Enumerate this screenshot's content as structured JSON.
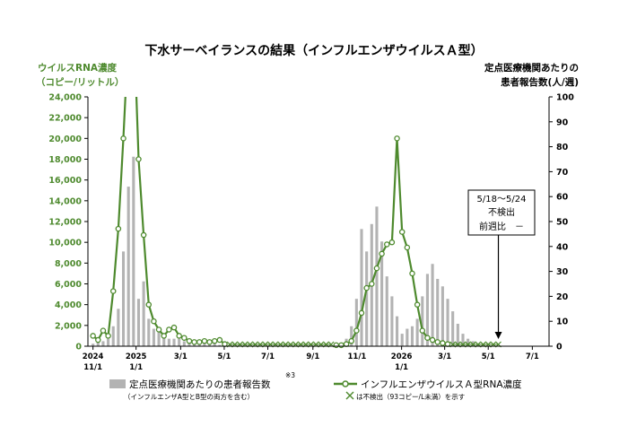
{
  "chart_data": {
    "type": "bar+line",
    "title": "下水サーベイランスの結果（インフルエンザウイルスＡ型）",
    "left_axis": {
      "label_line1": "ウイルスRNA濃度",
      "label_line2": "（コピー/リットル）",
      "ylim": [
        0,
        24000
      ],
      "ticks": [
        "0",
        "2,000",
        "4,000",
        "6,000",
        "8,000",
        "10,000",
        "12,000",
        "14,000",
        "16,000",
        "18,000",
        "20,000",
        "22,000",
        "24,000"
      ]
    },
    "right_axis": {
      "label_line1": "定点医療機関あたりの",
      "label_line2": "患者報告数(人/週)",
      "ylim": [
        0,
        100
      ],
      "ticks": [
        "0",
        "10",
        "20",
        "30",
        "40",
        "50",
        "60",
        "70",
        "80",
        "90",
        "100"
      ]
    },
    "x_ticks": [
      {
        "week": 0,
        "line1": "2024",
        "line2": "11/1"
      },
      {
        "week": 8.5,
        "line1": "2025",
        "line2": "1/1"
      },
      {
        "week": 17.3,
        "line1": "3/1",
        "line2": ""
      },
      {
        "week": 25.9,
        "line1": "5/1",
        "line2": ""
      },
      {
        "week": 34.5,
        "line1": "7/1",
        "line2": ""
      },
      {
        "week": 43.4,
        "line1": "9/1",
        "line2": ""
      },
      {
        "week": 52.1,
        "line1": "11/1",
        "line2": ""
      },
      {
        "week": 60.9,
        "line1": "2026",
        "line2": "1/1"
      },
      {
        "week": 69.4,
        "line1": "3/1",
        "line2": ""
      },
      {
        "week": 78.0,
        "line1": "5/1",
        "line2": ""
      },
      {
        "week": 86.7,
        "line1": "7/1",
        "line2": ""
      }
    ],
    "x_range_weeks": [
      -1,
      90
    ],
    "bars": {
      "name": "定点医療機関あたりの患者報告数",
      "note": "※3",
      "sub": "（インフルエンザA型とB型の両方を含む）",
      "color": "#b3b3b3",
      "points": [
        [
          0,
          1
        ],
        [
          1,
          1.5
        ],
        [
          2,
          2
        ],
        [
          3,
          3
        ],
        [
          4,
          8
        ],
        [
          5,
          15
        ],
        [
          6,
          38
        ],
        [
          7,
          64
        ],
        [
          8,
          76
        ],
        [
          9,
          19
        ],
        [
          10,
          26
        ],
        [
          11,
          11
        ],
        [
          12,
          7
        ],
        [
          13,
          6
        ],
        [
          14,
          4
        ],
        [
          15,
          3
        ],
        [
          16,
          3
        ],
        [
          17,
          3
        ],
        [
          18,
          2
        ],
        [
          19,
          2
        ],
        [
          20,
          1.5
        ],
        [
          21,
          1
        ],
        [
          22,
          1
        ],
        [
          23,
          1
        ],
        [
          24,
          1
        ],
        [
          25,
          0.5
        ],
        [
          48,
          0.5
        ],
        [
          49,
          1
        ],
        [
          50,
          3
        ],
        [
          51,
          8
        ],
        [
          52,
          19
        ],
        [
          53,
          47
        ],
        [
          54,
          38
        ],
        [
          55,
          49
        ],
        [
          56,
          56
        ],
        [
          57,
          42
        ],
        [
          58,
          28
        ],
        [
          59,
          20
        ],
        [
          60,
          12
        ],
        [
          61,
          5
        ],
        [
          62,
          7
        ],
        [
          63,
          8
        ],
        [
          64,
          11
        ],
        [
          65,
          20
        ],
        [
          66,
          29
        ],
        [
          67,
          33
        ],
        [
          68,
          27
        ],
        [
          69,
          24
        ],
        [
          70,
          19
        ],
        [
          71,
          14
        ],
        [
          72,
          9
        ],
        [
          73,
          5
        ],
        [
          74,
          3
        ],
        [
          75,
          2
        ],
        [
          76,
          1
        ],
        [
          77,
          1
        ]
      ]
    },
    "line": {
      "name": "インフルエンザウイルスＡ型RNA濃度",
      "color": "#4e8a2e",
      "points": [
        [
          0,
          1000
        ],
        [
          1,
          600
        ],
        [
          2,
          1500
        ],
        [
          3,
          1000
        ],
        [
          4,
          5300
        ],
        [
          5,
          11300
        ],
        [
          6,
          20000
        ],
        [
          7,
          30000
        ],
        [
          8,
          32000
        ],
        [
          9,
          18000
        ],
        [
          10,
          10700
        ],
        [
          11,
          4000
        ],
        [
          12,
          2400
        ],
        [
          13,
          1600
        ],
        [
          14,
          1000
        ],
        [
          15,
          1600
        ],
        [
          16,
          1800
        ],
        [
          17,
          1000
        ],
        [
          18,
          800
        ],
        [
          19,
          500
        ],
        [
          20,
          400
        ],
        [
          21,
          400
        ],
        [
          22,
          500
        ],
        [
          23,
          400
        ],
        [
          24,
          500
        ],
        [
          25,
          600
        ],
        [
          26,
          200
        ],
        [
          48,
          100
        ],
        [
          49,
          100
        ],
        [
          50,
          200
        ],
        [
          51,
          500
        ],
        [
          52,
          1500
        ],
        [
          53,
          3200
        ],
        [
          54,
          5600
        ],
        [
          55,
          6000
        ],
        [
          56,
          7500
        ],
        [
          57,
          8900
        ],
        [
          58,
          9800
        ],
        [
          59,
          10000
        ],
        [
          60,
          20000
        ],
        [
          61,
          11000
        ],
        [
          62,
          9500
        ],
        [
          63,
          7000
        ],
        [
          64,
          4000
        ],
        [
          65,
          1500
        ],
        [
          66,
          800
        ],
        [
          67,
          600
        ],
        [
          68,
          400
        ],
        [
          69,
          300
        ],
        [
          70,
          200
        ]
      ],
      "nd_weeks": [
        27,
        28,
        29,
        30,
        31,
        32,
        33,
        34,
        35,
        36,
        37,
        38,
        39,
        40,
        41,
        42,
        43,
        44,
        45,
        46,
        47,
        71,
        72,
        73,
        74,
        75,
        76,
        77,
        78,
        79,
        80
      ]
    },
    "nd_legend": "は不検出（93コピー/L未満）を示す",
    "annotation": {
      "line1": "5/18～5/24",
      "line2": "不検出",
      "line3": "前週比　－",
      "arrow_week": 80
    }
  }
}
